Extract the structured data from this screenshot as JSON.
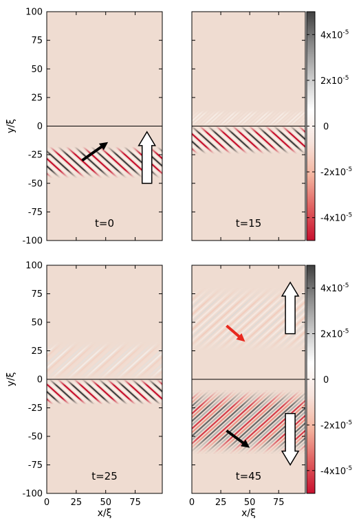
{
  "chart_data": [
    {
      "type": "heatmap",
      "xlabel": "",
      "ylabel": "y/ξ",
      "xlim": [
        0,
        98
      ],
      "ylim": [
        -100,
        100
      ],
      "xticks": [
        0,
        25,
        50,
        75
      ],
      "yticks": [
        -100,
        -75,
        -50,
        -25,
        0,
        25,
        50,
        75,
        100
      ],
      "show_x_tick_labels": false,
      "show_y_tick_labels": true,
      "time_label": "t=0",
      "interface_line_y": 0,
      "wave_bands": [
        {
          "y_min": -45,
          "y_max": -18,
          "amplitude_scale": 1.0,
          "kx": 0.55,
          "ky": -0.95
        }
      ],
      "arrows": [
        {
          "kind": "propagation",
          "color": "#000000",
          "from": [
            30,
            -30
          ],
          "to": [
            52,
            -14
          ]
        },
        {
          "kind": "packet-direction",
          "color": "#ffffff",
          "from": [
            85,
            -50
          ],
          "to": [
            85,
            -5
          ]
        }
      ]
    },
    {
      "type": "heatmap",
      "xlabel": "",
      "ylabel": "",
      "xlim": [
        0,
        98
      ],
      "ylim": [
        -100,
        100
      ],
      "xticks": [
        0,
        25,
        50,
        75
      ],
      "yticks": [
        -100,
        -75,
        -50,
        -25,
        0,
        25,
        50,
        75,
        100
      ],
      "show_x_tick_labels": false,
      "show_y_tick_labels": false,
      "time_label": "t=15",
      "interface_line_y": 0,
      "wave_bands": [
        {
          "y_min": -24,
          "y_max": 0,
          "amplitude_scale": 1.0,
          "kx": 0.55,
          "ky": -0.95
        },
        {
          "y_min": 0,
          "y_max": 14,
          "amplitude_scale": 0.15,
          "kx": 0.55,
          "ky": 0.95
        }
      ],
      "arrows": [],
      "colorbar": {
        "min": -5e-05,
        "max": 5e-05,
        "tick_values": [
          4e-05,
          2e-05,
          0,
          -2e-05,
          -4e-05
        ],
        "tick_labels": [
          "4x10",
          "2x10",
          "0",
          "-2x10",
          "-4x10"
        ],
        "tick_exponents": [
          "-5",
          "-5",
          "",
          "-5",
          "-5"
        ],
        "colors": [
          "#c8102e",
          "#e06060",
          "#f4b5a0",
          "#f6e3dc",
          "#ffffff",
          "#c8c8c8",
          "#8a8a8a",
          "#404040"
        ]
      }
    },
    {
      "type": "heatmap",
      "xlabel": "x/ξ",
      "ylabel": "y/ξ",
      "xlim": [
        0,
        98
      ],
      "ylim": [
        -100,
        100
      ],
      "xticks": [
        0,
        25,
        50,
        75
      ],
      "yticks": [
        -100,
        -75,
        -50,
        -25,
        0,
        25,
        50,
        75,
        100
      ],
      "show_x_tick_labels": true,
      "show_y_tick_labels": true,
      "time_label": "t=25",
      "interface_line_y": 0,
      "wave_bands": [
        {
          "y_min": -22,
          "y_max": 0,
          "amplitude_scale": 1.0,
          "kx": 0.55,
          "ky": -0.95
        },
        {
          "y_min": 0,
          "y_max": 32,
          "amplitude_scale": 0.35,
          "kx": 0.55,
          "ky": 0.95
        }
      ],
      "arrows": []
    },
    {
      "type": "heatmap",
      "xlabel": "x/ξ",
      "ylabel": "",
      "xlim": [
        0,
        98
      ],
      "ylim": [
        -100,
        100
      ],
      "xticks": [
        0,
        25,
        50,
        75
      ],
      "yticks": [
        -100,
        -75,
        -50,
        -25,
        0,
        25,
        50,
        75,
        100
      ],
      "show_x_tick_labels": true,
      "show_y_tick_labels": false,
      "time_label": "t=45",
      "interface_line_y": 0,
      "wave_bands": [
        {
          "y_min": 25,
          "y_max": 80,
          "amplitude_scale": 0.35,
          "kx": 0.55,
          "ky": 0.95
        },
        {
          "y_min": -65,
          "y_max": -10,
          "amplitude_scale": 1.0,
          "kx": 0.55,
          "ky": 0.95
        }
      ],
      "arrows": [
        {
          "kind": "reflected",
          "color": "#e8281e",
          "from": [
            30,
            47
          ],
          "to": [
            46,
            33
          ]
        },
        {
          "kind": "packet-direction",
          "color": "#ffffff",
          "from": [
            85,
            40
          ],
          "to": [
            85,
            85
          ]
        },
        {
          "kind": "transmitted",
          "color": "#000000",
          "from": [
            30,
            -45
          ],
          "to": [
            50,
            -60
          ]
        },
        {
          "kind": "packet-direction",
          "color": "#ffffff",
          "from": [
            85,
            -30
          ],
          "to": [
            85,
            -75
          ]
        }
      ],
      "colorbar": {
        "min": -5e-05,
        "max": 5e-05,
        "tick_values": [
          4e-05,
          2e-05,
          0,
          -2e-05,
          -4e-05
        ],
        "tick_labels": [
          "4x10",
          "2x10",
          "0",
          "-2x10",
          "-4x10"
        ],
        "tick_exponents": [
          "-5",
          "-5",
          "",
          "-5",
          "-5"
        ],
        "colors": [
          "#c8102e",
          "#e06060",
          "#f4b5a0",
          "#f6e3dc",
          "#ffffff",
          "#c8c8c8",
          "#8a8a8a",
          "#404040"
        ]
      }
    }
  ]
}
